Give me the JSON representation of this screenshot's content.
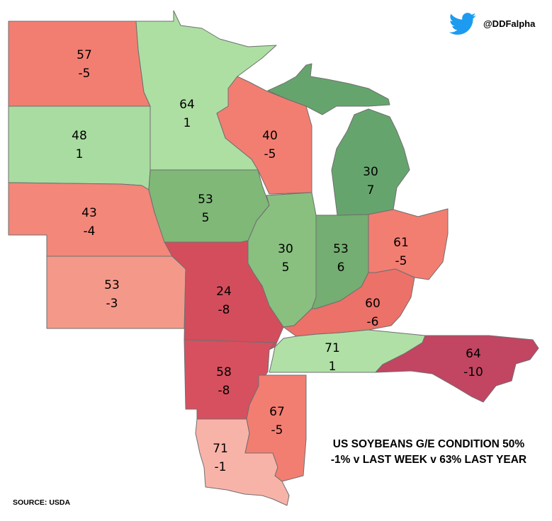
{
  "header": {
    "handle": "@DDFalpha",
    "icon": "twitter-bird-icon"
  },
  "caption": {
    "line1": "US SOYBEANS G/E CONDITION 50%",
    "line2": "-1% v LAST WEEK v 63% LAST YEAR"
  },
  "source": "SOURCE: USDA",
  "states": [
    {
      "id": "north-dakota",
      "condition": "57",
      "change": "-5",
      "fill": "#f27e71"
    },
    {
      "id": "south-dakota",
      "condition": "48",
      "change": "1",
      "fill": "#a9dca0"
    },
    {
      "id": "nebraska",
      "condition": "43",
      "change": "-4",
      "fill": "#f2877a"
    },
    {
      "id": "kansas",
      "condition": "53",
      "change": "-3",
      "fill": "#f4998a"
    },
    {
      "id": "minnesota",
      "condition": "64",
      "change": "1",
      "fill": "#addfa3"
    },
    {
      "id": "iowa",
      "condition": "53",
      "change": "5",
      "fill": "#80b878"
    },
    {
      "id": "missouri",
      "condition": "24",
      "change": "-8",
      "fill": "#d44d5d"
    },
    {
      "id": "arkansas",
      "condition": "58",
      "change": "-8",
      "fill": "#d7505f"
    },
    {
      "id": "louisiana",
      "condition": "71",
      "change": "-1",
      "fill": "#f8b3a9"
    },
    {
      "id": "mississippi",
      "condition": "67",
      "change": "-5",
      "fill": "#f27e71"
    },
    {
      "id": "wisconsin",
      "condition": "40",
      "change": "-5",
      "fill": "#f27e71"
    },
    {
      "id": "illinois",
      "condition": "30",
      "change": "5",
      "fill": "#89c07f"
    },
    {
      "id": "michigan",
      "condition": "30",
      "change": "7",
      "fill": "#65a56d"
    },
    {
      "id": "indiana",
      "condition": "53",
      "change": "6",
      "fill": "#74ae72"
    },
    {
      "id": "ohio",
      "condition": "61",
      "change": "-5",
      "fill": "#f27e71"
    },
    {
      "id": "kentucky",
      "condition": "60",
      "change": "-6",
      "fill": "#ec7169"
    },
    {
      "id": "tennessee",
      "condition": "71",
      "change": "1",
      "fill": "#b0e0a6"
    },
    {
      "id": "north-carolina",
      "condition": "64",
      "change": "-10",
      "fill": "#c24562"
    }
  ]
}
